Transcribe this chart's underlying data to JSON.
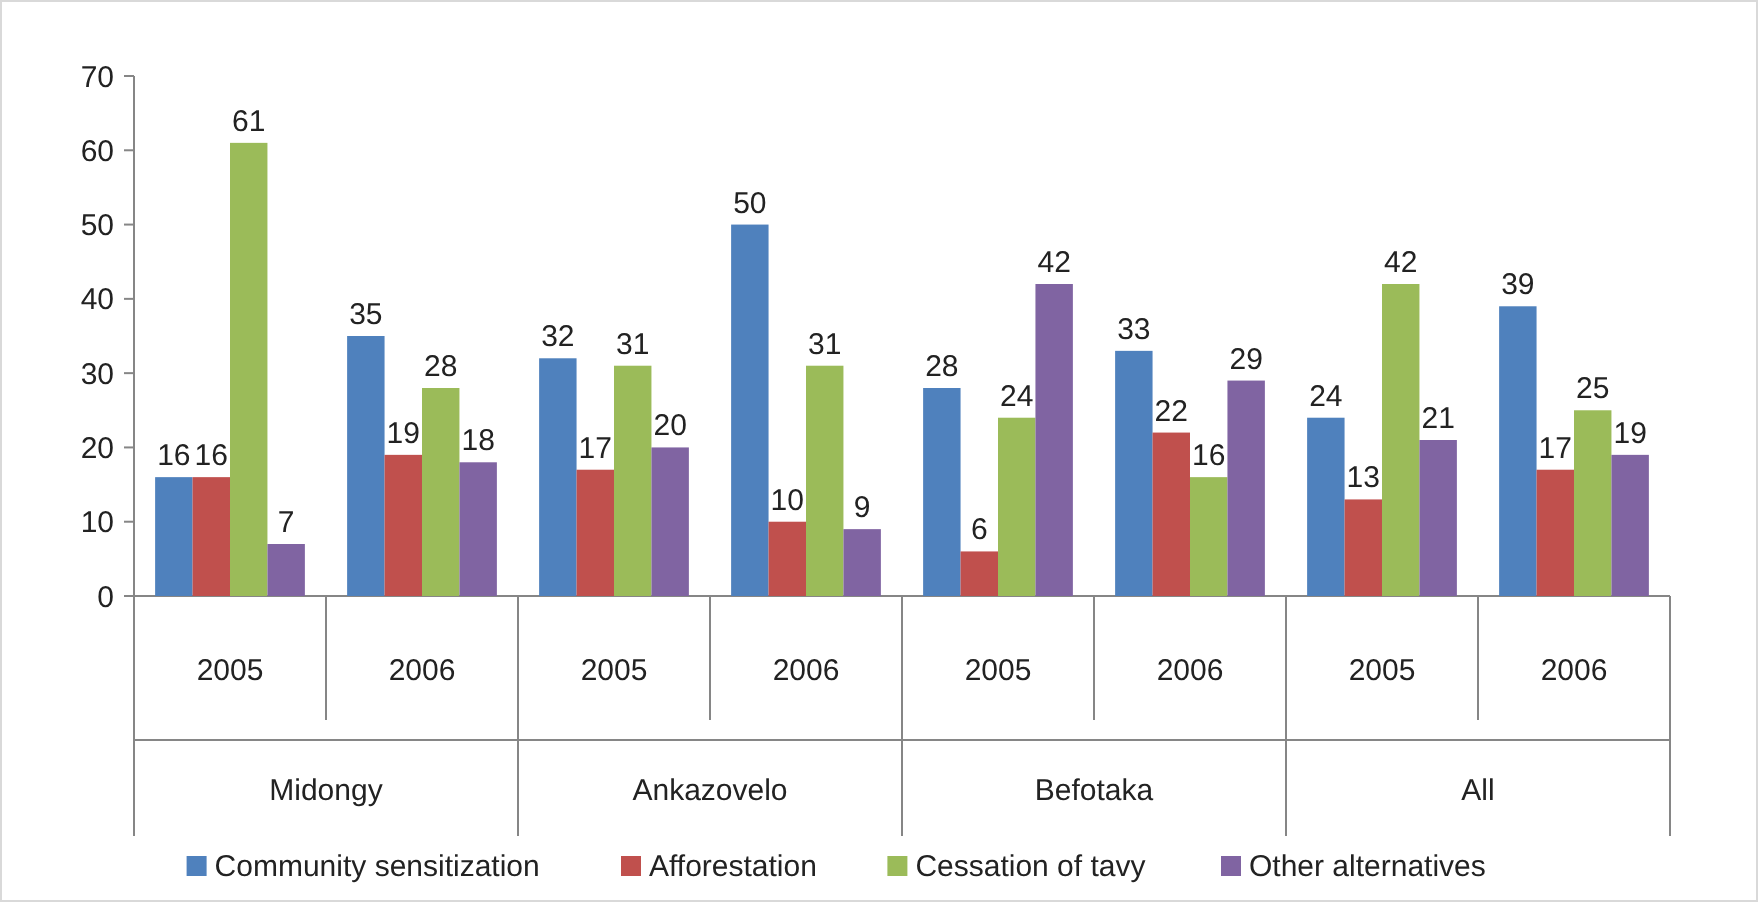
{
  "chart_data": {
    "type": "bar",
    "categories": [
      "2005",
      "2006",
      "2005",
      "2006",
      "2005",
      "2006",
      "2005",
      "2006"
    ],
    "annotations": [
      "Midongy",
      "Ankazovelo",
      "Befotaka",
      "All"
    ],
    "series": [
      {
        "name": "Community sensitization",
        "color": "#4f81bd",
        "values": [
          16,
          35,
          32,
          50,
          28,
          33,
          24,
          39
        ]
      },
      {
        "name": "Afforestation",
        "color": "#c0504d",
        "values": [
          16,
          19,
          17,
          10,
          6,
          22,
          13,
          17
        ]
      },
      {
        "name": "Cessation of tavy",
        "color": "#9bbb59",
        "values": [
          61,
          28,
          31,
          31,
          24,
          16,
          42,
          25
        ]
      },
      {
        "name": "Other alternatives",
        "color": "#8064a2",
        "values": [
          7,
          18,
          20,
          9,
          42,
          29,
          21,
          19
        ]
      }
    ],
    "ylim": [
      0,
      70
    ],
    "yticks": [
      0,
      10,
      20,
      30,
      40,
      50,
      60,
      70
    ],
    "data_labels": true,
    "legend": "bottom"
  }
}
